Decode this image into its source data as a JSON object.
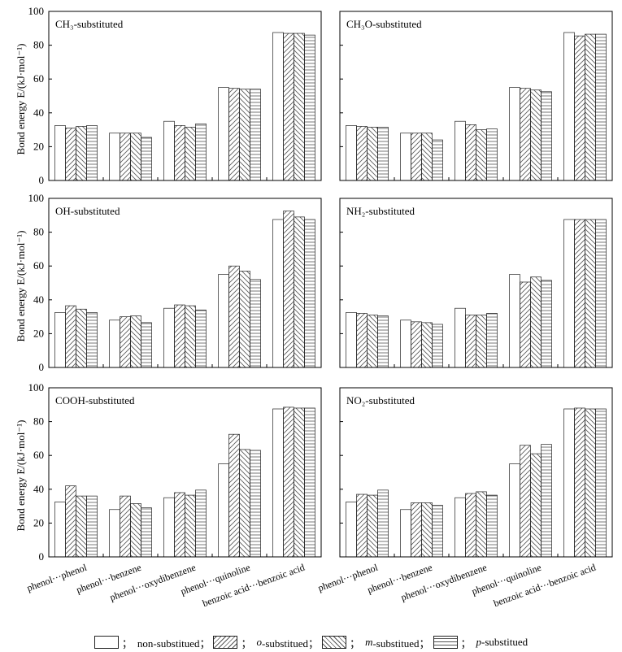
{
  "chart_data": {
    "type": "bar",
    "categories": [
      "phenol···phenol",
      "phenol···benzene",
      "phenol···oxydibenzene",
      "phenol···quinoline",
      "benzoic acid···benzoic acid"
    ],
    "ylabel": "Bond energy E/(kJ·mol⁻¹)",
    "ylim": [
      0,
      100
    ],
    "yticks": [
      0,
      20,
      40,
      60,
      80,
      100
    ],
    "grid": false,
    "legend_position": "bottom",
    "panels": [
      {
        "title": "CH₃-substituted",
        "series": [
          {
            "name": "non-substitued",
            "values": [
              32.5,
              28,
              35,
              55,
              87.5
            ]
          },
          {
            "name": "o-substitued",
            "values": [
              31,
              28,
              32.5,
              54.5,
              87
            ]
          },
          {
            "name": "m-substitued",
            "values": [
              32,
              28,
              31.5,
              54,
              87
            ]
          },
          {
            "name": "p-substitued",
            "values": [
              32.5,
              25.5,
              33.5,
              54,
              86
            ]
          }
        ]
      },
      {
        "title": "CH₃O-substituted",
        "series": [
          {
            "name": "non-substitued",
            "values": [
              32.5,
              28,
              35,
              55,
              87.5
            ]
          },
          {
            "name": "o-substitued",
            "values": [
              32,
              28,
              33,
              54.5,
              85.5
            ]
          },
          {
            "name": "m-substitued",
            "values": [
              31.5,
              28,
              30,
              53.5,
              86.5
            ]
          },
          {
            "name": "p-substitued",
            "values": [
              31.5,
              24,
              30.5,
              52.5,
              86.5
            ]
          }
        ]
      },
      {
        "title": "OH-substituted",
        "series": [
          {
            "name": "non-substitued",
            "values": [
              32.5,
              28,
              35,
              55,
              87.5
            ]
          },
          {
            "name": "o-substitued",
            "values": [
              36.5,
              30,
              37,
              60,
              92.5
            ]
          },
          {
            "name": "m-substitued",
            "values": [
              34.5,
              30.5,
              36.5,
              57,
              89
            ]
          },
          {
            "name": "p-substitued",
            "values": [
              32.5,
              26.5,
              34,
              52,
              87.5
            ]
          }
        ]
      },
      {
        "title": "NH₂-substituted",
        "series": [
          {
            "name": "non-substitued",
            "values": [
              32.5,
              28,
              35,
              55,
              87.5
            ]
          },
          {
            "name": "o-substitued",
            "values": [
              32,
              27,
              31,
              50.5,
              87.5
            ]
          },
          {
            "name": "m-substitued",
            "values": [
              31,
              26.5,
              31,
              53.5,
              87.5
            ]
          },
          {
            "name": "p-substitued",
            "values": [
              30.5,
              25.5,
              32,
              51.5,
              87.5
            ]
          }
        ]
      },
      {
        "title": "COOH-substituted",
        "series": [
          {
            "name": "non-substitued",
            "values": [
              32.5,
              28,
              35,
              55,
              87.5
            ]
          },
          {
            "name": "o-substitued",
            "values": [
              42,
              36,
              38,
              72.5,
              88.5
            ]
          },
          {
            "name": "m-substitued",
            "values": [
              36,
              31.5,
              36.5,
              63.5,
              88
            ]
          },
          {
            "name": "p-substitued",
            "values": [
              36,
              29,
              39.5,
              63,
              88
            ]
          }
        ]
      },
      {
        "title": "NO₂-substituted",
        "series": [
          {
            "name": "non-substitued",
            "values": [
              32.5,
              28,
              35,
              55,
              87.5
            ]
          },
          {
            "name": "o-substitued",
            "values": [
              37,
              32,
              37.5,
              66,
              88
            ]
          },
          {
            "name": "m-substitued",
            "values": [
              36.5,
              32,
              38.5,
              61,
              87.5
            ]
          },
          {
            "name": "p-substitued",
            "values": [
              39.5,
              30.5,
              36.5,
              66.5,
              87.5
            ]
          }
        ]
      }
    ]
  },
  "legend": {
    "sep": "；",
    "items": [
      {
        "prefix": "",
        "label": "non-substitued",
        "pattern": "none"
      },
      {
        "prefix": "o",
        "label": "-substitued",
        "pattern": "diag-right"
      },
      {
        "prefix": "m",
        "label": "-substitued",
        "pattern": "diag-left"
      },
      {
        "prefix": "p",
        "label": "-substitued",
        "pattern": "horizontal"
      }
    ]
  },
  "colors": {
    "bar_stroke": "#222222",
    "hatch": "#555555",
    "axis": "#000000"
  }
}
